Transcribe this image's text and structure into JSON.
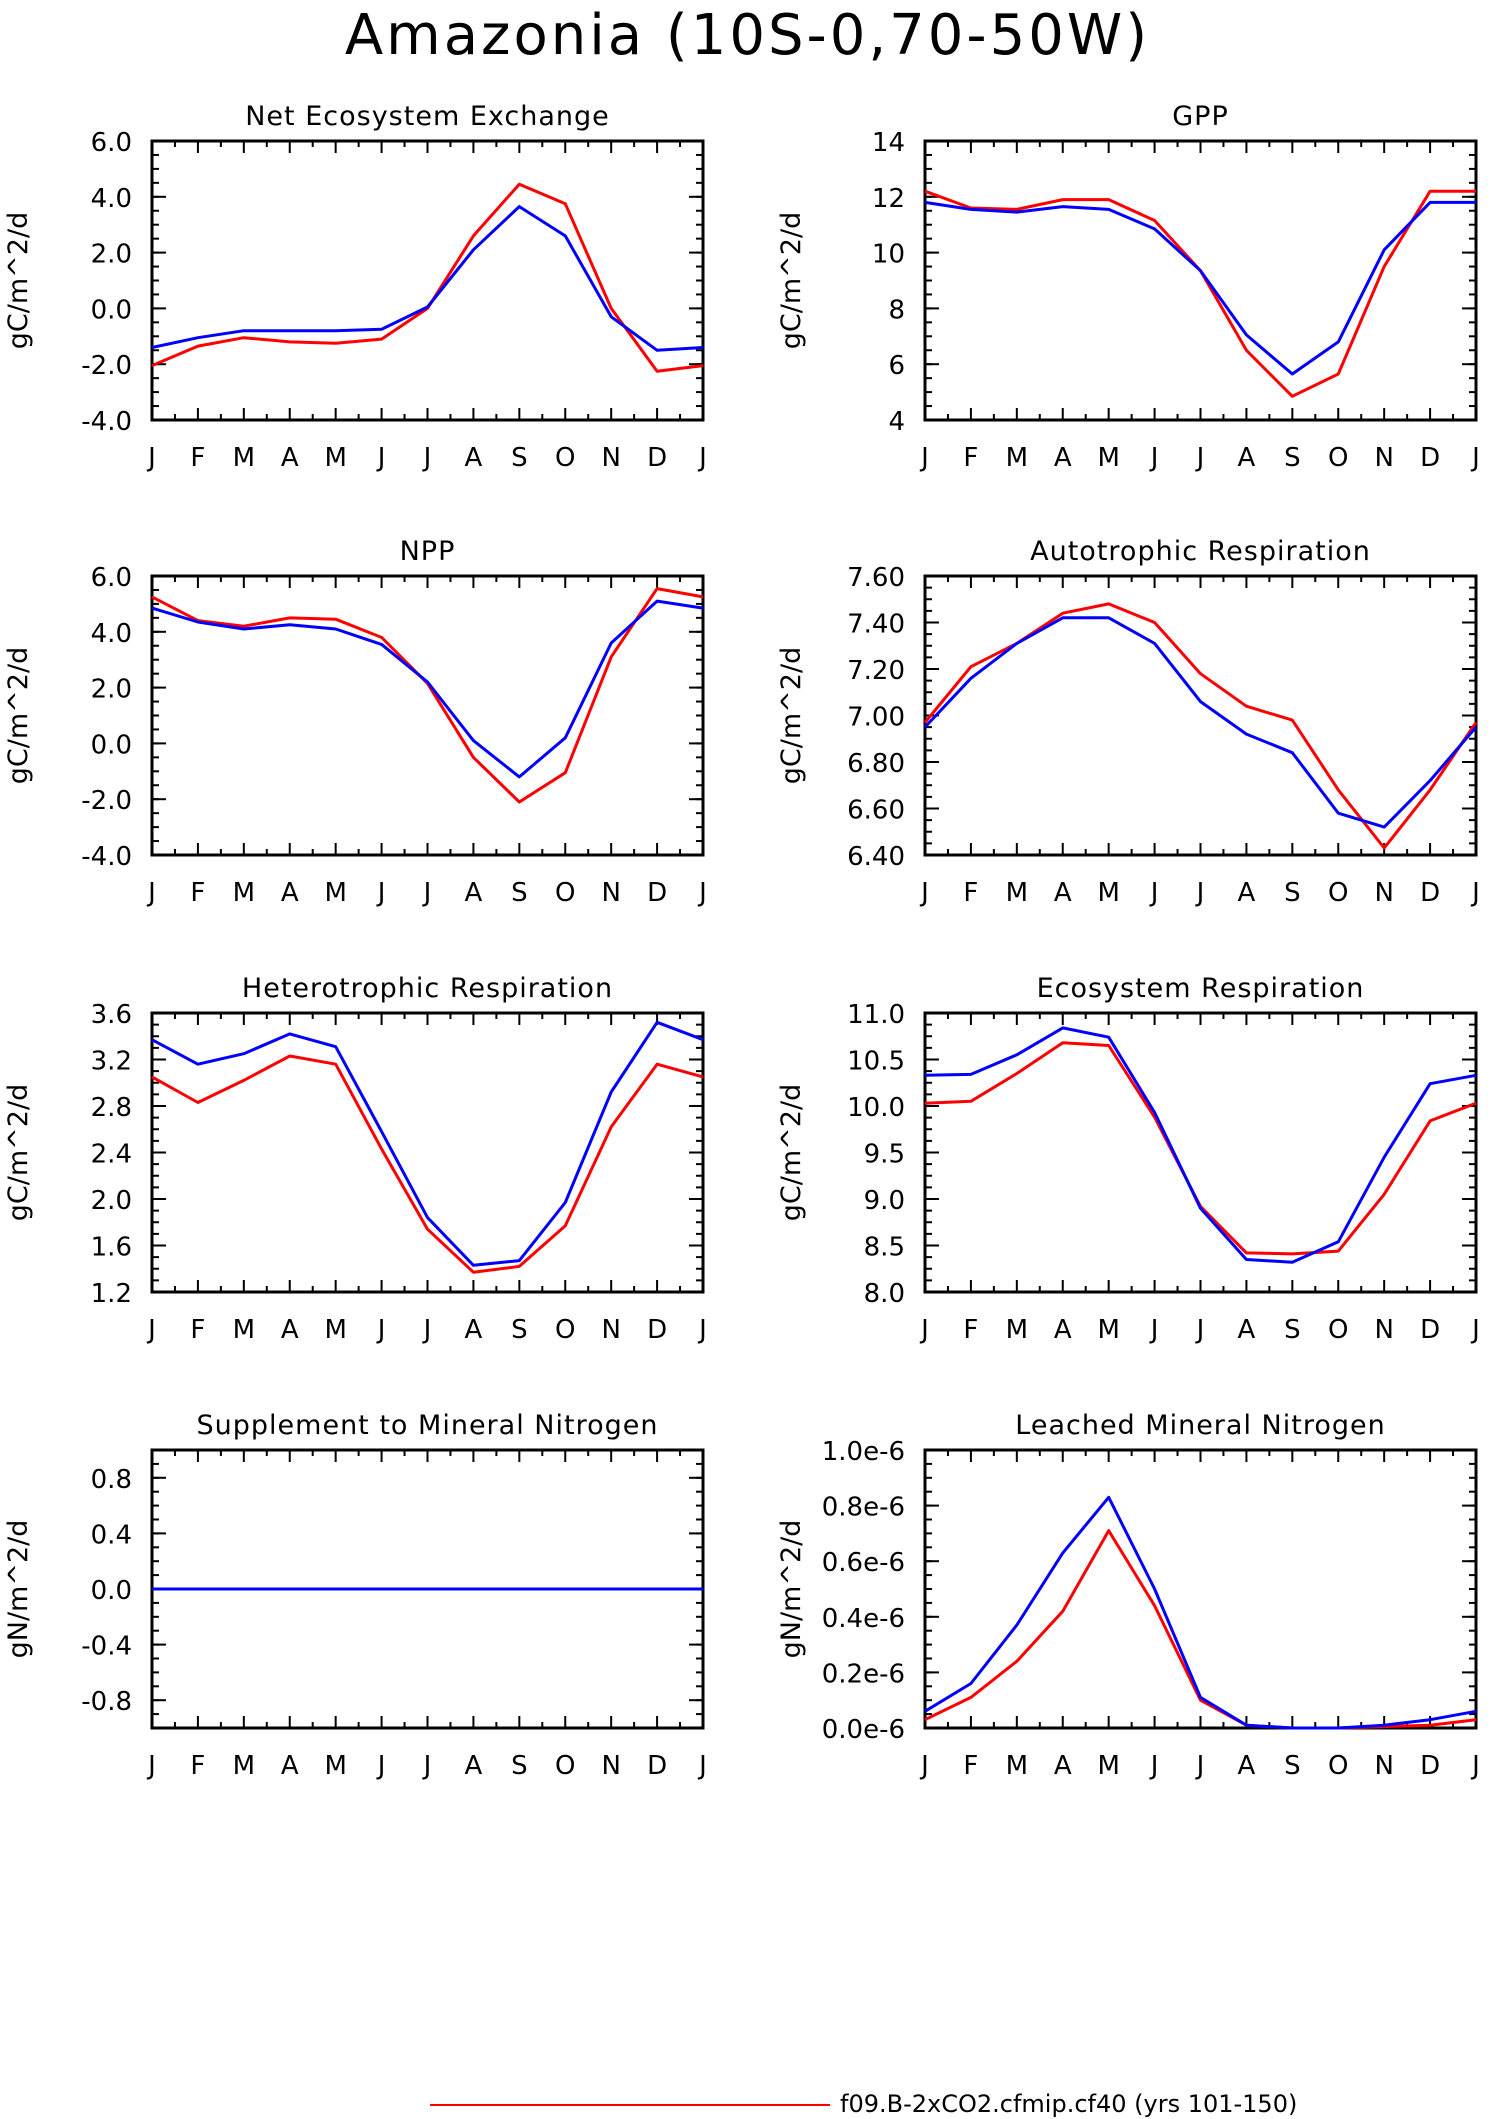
{
  "title": "Amazonia (10S-0,70-50W)",
  "colors": {
    "series_red": "#ff0000",
    "series_blue": "#0000ff"
  },
  "legend": {
    "label": "f09.B-2xCO2.cfmip.cf40 (yrs 101-150)",
    "color": "#ff0000"
  },
  "chart_data": [
    {
      "type": "line",
      "title": "Net Ecosystem Exchange",
      "ylabel": "gC/m^2/d",
      "categories": [
        "J",
        "F",
        "M",
        "A",
        "M",
        "J",
        "J",
        "A",
        "S",
        "O",
        "N",
        "D",
        "J"
      ],
      "ylim": [
        -4.0,
        6.0
      ],
      "yticks": [
        -4.0,
        -2.0,
        0.0,
        2.0,
        4.0,
        6.0
      ],
      "ytick_labels": [
        "-4.0",
        "-2.0",
        "0.0",
        "2.0",
        "4.0",
        "6.0"
      ],
      "series": [
        {
          "color": "#ff0000",
          "values": [
            -2.05,
            -1.35,
            -1.05,
            -1.2,
            -1.25,
            -1.1,
            0.0,
            2.6,
            4.45,
            3.75,
            0.0,
            -2.25,
            -2.05
          ]
        },
        {
          "color": "#0000ff",
          "values": [
            -1.4,
            -1.05,
            -0.8,
            -0.8,
            -0.8,
            -0.75,
            0.05,
            2.1,
            3.65,
            2.6,
            -0.3,
            -1.5,
            -1.4
          ]
        }
      ]
    },
    {
      "type": "line",
      "title": "GPP",
      "ylabel": "gC/m^2/d",
      "categories": [
        "J",
        "F",
        "M",
        "A",
        "M",
        "J",
        "J",
        "A",
        "S",
        "O",
        "N",
        "D",
        "J"
      ],
      "ylim": [
        4,
        14
      ],
      "yticks": [
        4,
        6,
        8,
        10,
        12,
        14
      ],
      "ytick_labels": [
        "4",
        "6",
        "8",
        "10",
        "12",
        "14"
      ],
      "series": [
        {
          "color": "#ff0000",
          "values": [
            12.2,
            11.6,
            11.55,
            11.9,
            11.9,
            11.15,
            9.35,
            6.5,
            4.85,
            5.65,
            9.5,
            12.2,
            12.2
          ]
        },
        {
          "color": "#0000ff",
          "values": [
            11.8,
            11.55,
            11.45,
            11.65,
            11.55,
            10.85,
            9.35,
            7.05,
            5.65,
            6.8,
            10.1,
            11.8,
            11.8
          ]
        }
      ]
    },
    {
      "type": "line",
      "title": "NPP",
      "ylabel": "gC/m^2/d",
      "categories": [
        "J",
        "F",
        "M",
        "A",
        "M",
        "J",
        "J",
        "A",
        "S",
        "O",
        "N",
        "D",
        "J"
      ],
      "ylim": [
        -4.0,
        6.0
      ],
      "yticks": [
        -4.0,
        -2.0,
        0.0,
        2.0,
        4.0,
        6.0
      ],
      "ytick_labels": [
        "-4.0",
        "-2.0",
        "0.0",
        "2.0",
        "4.0",
        "6.0"
      ],
      "series": [
        {
          "color": "#ff0000",
          "values": [
            5.25,
            4.4,
            4.2,
            4.5,
            4.45,
            3.8,
            2.15,
            -0.5,
            -2.1,
            -1.05,
            3.1,
            5.55,
            5.25
          ]
        },
        {
          "color": "#0000ff",
          "values": [
            4.85,
            4.35,
            4.1,
            4.25,
            4.1,
            3.55,
            2.2,
            0.1,
            -1.2,
            0.2,
            3.6,
            5.1,
            4.85
          ]
        }
      ]
    },
    {
      "type": "line",
      "title": "Autotrophic Respiration",
      "ylabel": "gC/m^2/d",
      "categories": [
        "J",
        "F",
        "M",
        "A",
        "M",
        "J",
        "J",
        "A",
        "S",
        "O",
        "N",
        "D",
        "J"
      ],
      "ylim": [
        6.4,
        7.6
      ],
      "yticks": [
        6.4,
        6.6,
        6.8,
        7.0,
        7.2,
        7.4,
        7.6
      ],
      "ytick_labels": [
        "6.40",
        "6.60",
        "6.80",
        "7.00",
        "7.20",
        "7.40",
        "7.60"
      ],
      "series": [
        {
          "color": "#ff0000",
          "values": [
            6.97,
            7.21,
            7.31,
            7.44,
            7.48,
            7.4,
            7.18,
            7.04,
            6.98,
            6.68,
            6.43,
            6.68,
            6.97
          ]
        },
        {
          "color": "#0000ff",
          "values": [
            6.95,
            7.16,
            7.31,
            7.42,
            7.42,
            7.31,
            7.06,
            6.92,
            6.84,
            6.58,
            6.52,
            6.72,
            6.95
          ]
        }
      ]
    },
    {
      "type": "line",
      "title": "Heterotrophic Respiration",
      "ylabel": "gC/m^2/d",
      "categories": [
        "J",
        "F",
        "M",
        "A",
        "M",
        "J",
        "J",
        "A",
        "S",
        "O",
        "N",
        "D",
        "J"
      ],
      "ylim": [
        1.2,
        3.6
      ],
      "yticks": [
        1.2,
        1.6,
        2.0,
        2.4,
        2.8,
        3.2,
        3.6
      ],
      "ytick_labels": [
        "1.2",
        "1.6",
        "2.0",
        "2.4",
        "2.8",
        "3.2",
        "3.6"
      ],
      "series": [
        {
          "color": "#ff0000",
          "values": [
            3.05,
            2.83,
            3.02,
            3.23,
            3.16,
            2.43,
            1.74,
            1.37,
            1.42,
            1.77,
            2.62,
            3.16,
            3.05
          ]
        },
        {
          "color": "#0000ff",
          "values": [
            3.37,
            3.16,
            3.25,
            3.42,
            3.31,
            2.58,
            1.84,
            1.43,
            1.47,
            1.97,
            2.92,
            3.52,
            3.37
          ]
        }
      ]
    },
    {
      "type": "line",
      "title": "Ecosystem Respiration",
      "ylabel": "gC/m^2/d",
      "categories": [
        "J",
        "F",
        "M",
        "A",
        "M",
        "J",
        "J",
        "A",
        "S",
        "O",
        "N",
        "D",
        "J"
      ],
      "ylim": [
        8.0,
        11.0
      ],
      "yticks": [
        8.0,
        8.5,
        9.0,
        9.5,
        10.0,
        10.5,
        11.0
      ],
      "ytick_labels": [
        "8.0",
        "8.5",
        "9.0",
        "9.5",
        "10.0",
        "10.5",
        "11.0"
      ],
      "series": [
        {
          "color": "#ff0000",
          "values": [
            10.03,
            10.05,
            10.35,
            10.68,
            10.65,
            9.88,
            8.92,
            8.42,
            8.41,
            8.44,
            9.05,
            9.84,
            10.03
          ]
        },
        {
          "color": "#0000ff",
          "values": [
            10.33,
            10.34,
            10.55,
            10.84,
            10.74,
            9.93,
            8.9,
            8.35,
            8.32,
            8.54,
            9.45,
            10.24,
            10.33
          ]
        }
      ]
    },
    {
      "type": "line",
      "title": "Supplement to Mineral Nitrogen",
      "ylabel": "gN/m^2/d",
      "categories": [
        "J",
        "F",
        "M",
        "A",
        "M",
        "J",
        "J",
        "A",
        "S",
        "O",
        "N",
        "D",
        "J"
      ],
      "ylim": [
        -1.0,
        1.0
      ],
      "yticks": [
        -0.8,
        -0.4,
        0.0,
        0.4,
        0.8
      ],
      "ytick_labels": [
        "-0.8",
        "-0.4",
        "0.0",
        "0.4",
        "0.8"
      ],
      "series": [
        {
          "color": "#ff0000",
          "values": [
            0,
            0,
            0,
            0,
            0,
            0,
            0,
            0,
            0,
            0,
            0,
            0,
            0
          ]
        },
        {
          "color": "#0000ff",
          "values": [
            0,
            0,
            0,
            0,
            0,
            0,
            0,
            0,
            0,
            0,
            0,
            0,
            0
          ]
        }
      ]
    },
    {
      "type": "line",
      "title": "Leached Mineral Nitrogen",
      "ylabel": "gN/m^2/d",
      "categories": [
        "J",
        "F",
        "M",
        "A",
        "M",
        "J",
        "J",
        "A",
        "S",
        "O",
        "N",
        "D",
        "J"
      ],
      "ylim": [
        0.0,
        1e-06
      ],
      "yticks": [
        0.0,
        2e-07,
        4e-07,
        6e-07,
        8e-07,
        1e-06
      ],
      "ytick_labels": [
        "0.0e-6",
        "0.2e-6",
        "0.4e-6",
        "0.6e-6",
        "0.8e-6",
        "1.0e-6"
      ],
      "series": [
        {
          "color": "#ff0000",
          "values": [
            3e-08,
            1.1e-07,
            2.4e-07,
            4.2e-07,
            7.1e-07,
            4.4e-07,
            1e-07,
            1e-08,
            0.0,
            0.0,
            5e-09,
            1e-08,
            3e-08
          ]
        },
        {
          "color": "#0000ff",
          "values": [
            6e-08,
            1.6e-07,
            3.7e-07,
            6.3e-07,
            8.3e-07,
            5e-07,
            1.1e-07,
            1e-08,
            0.0,
            0.0,
            1e-08,
            3e-08,
            6e-08
          ]
        }
      ]
    }
  ]
}
